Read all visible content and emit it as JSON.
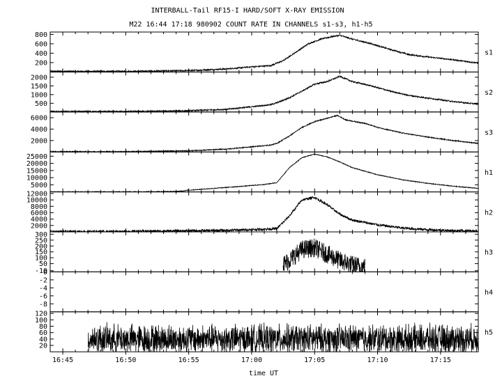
{
  "chart_data": {
    "type": "line",
    "title": "INTERBALL-Tail RF15-I HARD/SOFT X-RAY EMISSION",
    "subtitle": "M22  16:44 17:18 980902  COUNT RATE IN CHANNELS s1-s3, h1-h5",
    "xlabel": "time UT",
    "x_range_minutes": [
      -16,
      18
    ],
    "x_ticks": [
      {
        "label": "16:45",
        "t": -15
      },
      {
        "label": "16:50",
        "t": -10
      },
      {
        "label": "16:55",
        "t": -5
      },
      {
        "label": "17:00",
        "t": 0
      },
      {
        "label": "17:05",
        "t": 5
      },
      {
        "label": "17:10",
        "t": 10
      },
      {
        "label": "17:15",
        "t": 15
      }
    ],
    "panels": [
      {
        "name": "s1",
        "ylim": [
          0,
          850
        ],
        "ticks": [
          200,
          400,
          600,
          800
        ],
        "points": [
          [
            -10,
            15
          ],
          [
            -5,
            30
          ],
          [
            -2,
            65
          ],
          [
            0,
            110
          ],
          [
            1.5,
            135
          ],
          [
            2.5,
            240
          ],
          [
            3.5,
            420
          ],
          [
            4.5,
            600
          ],
          [
            5.5,
            700
          ],
          [
            6.5,
            760
          ],
          [
            7,
            780
          ],
          [
            8,
            700
          ],
          [
            9.5,
            600
          ],
          [
            11,
            480
          ],
          [
            12.5,
            370
          ],
          [
            14,
            320
          ],
          [
            16,
            260
          ],
          [
            18,
            190
          ]
        ],
        "noise": 15
      },
      {
        "name": "s2",
        "ylim": [
          0,
          2300
        ],
        "ticks": [
          500,
          1000,
          1500,
          2000
        ],
        "points": [
          [
            -10,
            25
          ],
          [
            -5,
            70
          ],
          [
            -2,
            150
          ],
          [
            0,
            300
          ],
          [
            1.5,
            420
          ],
          [
            2,
            530
          ],
          [
            3,
            820
          ],
          [
            4,
            1200
          ],
          [
            5,
            1600
          ],
          [
            6,
            1750
          ],
          [
            7,
            2050
          ],
          [
            8,
            1750
          ],
          [
            9.5,
            1500
          ],
          [
            11,
            1200
          ],
          [
            12.5,
            950
          ],
          [
            14,
            800
          ],
          [
            16,
            600
          ],
          [
            18,
            450
          ]
        ],
        "noise": 40
      },
      {
        "name": "s3",
        "ylim": [
          0,
          7000
        ],
        "ticks": [
          2000,
          4000,
          6000
        ],
        "points": [
          [
            -10,
            60
          ],
          [
            -5,
            200
          ],
          [
            -2,
            500
          ],
          [
            0,
            900
          ],
          [
            1.5,
            1200
          ],
          [
            2,
            1500
          ],
          [
            3,
            2800
          ],
          [
            4,
            4300
          ],
          [
            5,
            5300
          ],
          [
            6,
            5900
          ],
          [
            6.8,
            6400
          ],
          [
            7.5,
            5600
          ],
          [
            9,
            5000
          ],
          [
            10,
            4300
          ],
          [
            12,
            3300
          ],
          [
            14,
            2600
          ],
          [
            16,
            2000
          ],
          [
            18,
            1500
          ]
        ],
        "noise": 80
      },
      {
        "name": "h1",
        "ylim": [
          0,
          28000
        ],
        "ticks": [
          5000,
          10000,
          15000,
          20000,
          25000
        ],
        "points": [
          [
            -15,
            50
          ],
          [
            -10,
            100
          ],
          [
            -6,
            300
          ],
          [
            -5,
            1200
          ],
          [
            -3,
            2500
          ],
          [
            -1,
            3800
          ],
          [
            1,
            5200
          ],
          [
            2,
            6500
          ],
          [
            3,
            17000
          ],
          [
            4,
            24000
          ],
          [
            5,
            26500
          ],
          [
            6,
            24500
          ],
          [
            7,
            21000
          ],
          [
            8,
            17000
          ],
          [
            10,
            12000
          ],
          [
            12,
            8500
          ],
          [
            14,
            6000
          ],
          [
            16,
            4000
          ],
          [
            18,
            2500
          ]
        ],
        "noise": 250
      },
      {
        "name": "h2",
        "ylim": [
          0,
          12500
        ],
        "ticks": [
          2000,
          4000,
          6000,
          8000,
          10000,
          12000
        ],
        "points": [
          [
            -15,
            80
          ],
          [
            -10,
            150
          ],
          [
            -5,
            350
          ],
          [
            -2,
            500
          ],
          [
            0,
            700
          ],
          [
            2,
            1000
          ],
          [
            3,
            5000
          ],
          [
            4,
            10000
          ],
          [
            5,
            10800
          ],
          [
            6,
            8500
          ],
          [
            7,
            5500
          ],
          [
            8,
            3700
          ],
          [
            10,
            2200
          ],
          [
            12,
            1200
          ],
          [
            14,
            700
          ],
          [
            16,
            400
          ],
          [
            18,
            300
          ]
        ],
        "noise": 400
      },
      {
        "name": "h3",
        "ylim": [
          -20,
          320
        ],
        "ticks": [
          -10,
          50,
          100,
          150,
          200,
          250,
          300
        ],
        "t_start": 2.5,
        "t_end": 9,
        "points": [
          [
            2.5,
            40
          ],
          [
            3,
            80
          ],
          [
            4,
            170
          ],
          [
            5,
            185
          ],
          [
            6,
            130
          ],
          [
            7,
            75
          ],
          [
            8,
            40
          ],
          [
            9,
            20
          ]
        ],
        "noise": 80
      },
      {
        "name": "h4",
        "ylim": [
          -10,
          0
        ],
        "ticks": [
          -8,
          -6,
          -4,
          -2,
          0
        ],
        "points": [],
        "noise": 0
      },
      {
        "name": "h5",
        "ylim": [
          0,
          125
        ],
        "ticks": [
          20,
          40,
          60,
          80,
          100,
          120
        ],
        "t_start": -13,
        "t_end": 18,
        "points": [
          [
            -13,
            40
          ],
          [
            18,
            40
          ]
        ],
        "noise": 38
      }
    ]
  }
}
